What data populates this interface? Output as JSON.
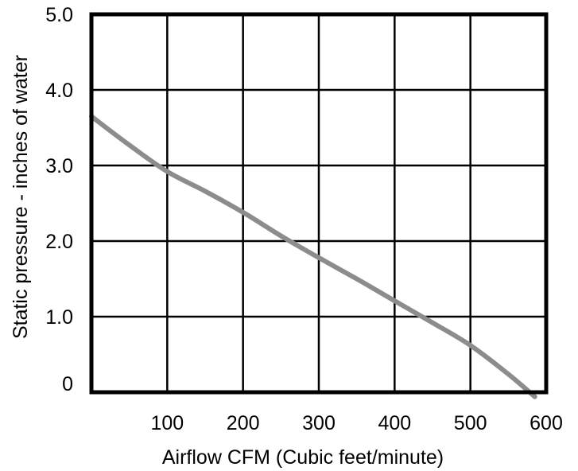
{
  "chart_data": {
    "type": "line",
    "title": "",
    "xlabel": "Airflow CFM (Cubic feet/minute)",
    "ylabel": "Static pressure - inches of water",
    "xlim": [
      0,
      600
    ],
    "ylim": [
      0,
      5.0
    ],
    "x_ticks": [
      {
        "value": 100,
        "label": "100"
      },
      {
        "value": 200,
        "label": "200"
      },
      {
        "value": 300,
        "label": "300"
      },
      {
        "value": 400,
        "label": "400"
      },
      {
        "value": 500,
        "label": "500"
      },
      {
        "value": 600,
        "label": "600"
      }
    ],
    "y_ticks": [
      {
        "value": 0,
        "label": "0"
      },
      {
        "value": 1,
        "label": "1.0"
      },
      {
        "value": 2,
        "label": "2.0"
      },
      {
        "value": 3,
        "label": "3.0"
      },
      {
        "value": 4,
        "label": "4.0"
      },
      {
        "value": 5,
        "label": "5.0"
      }
    ],
    "grid": true,
    "series": [
      {
        "color": "#8c8c8c",
        "x": [
          0,
          50,
          100,
          150,
          200,
          250,
          300,
          350,
          400,
          450,
          500,
          550,
          585
        ],
        "y": [
          3.65,
          3.27,
          2.92,
          2.66,
          2.38,
          2.07,
          1.78,
          1.5,
          1.21,
          0.92,
          0.62,
          0.24,
          -0.06
        ]
      }
    ]
  }
}
